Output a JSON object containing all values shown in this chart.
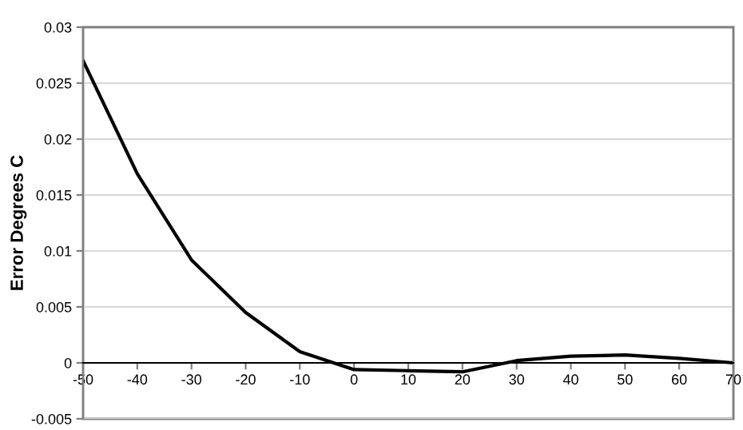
{
  "chart_data": {
    "type": "line",
    "ylabel": "Error Degrees C",
    "x": [
      -50,
      -40,
      -30,
      -20,
      -10,
      0,
      10,
      20,
      30,
      40,
      50,
      60,
      70
    ],
    "series": [
      {
        "color": "#000000",
        "values": [
          0.027,
          0.0169,
          0.0092,
          0.0045,
          0.001,
          -0.0006,
          -0.0007,
          -0.0008,
          0.0002,
          0.0006,
          0.0007,
          0.0004,
          0.0
        ]
      }
    ],
    "xlim": [
      -50,
      70
    ],
    "xticks": [
      -50,
      -40,
      -30,
      -20,
      -10,
      0,
      10,
      20,
      30,
      40,
      50,
      60,
      70
    ],
    "ylim": [
      -0.005,
      0.03
    ],
    "yticks": [
      -0.005,
      0,
      0.005,
      0.01,
      0.015,
      0.02,
      0.025,
      0.03
    ],
    "grid": "y",
    "marker": "none",
    "line_style": "solid"
  }
}
